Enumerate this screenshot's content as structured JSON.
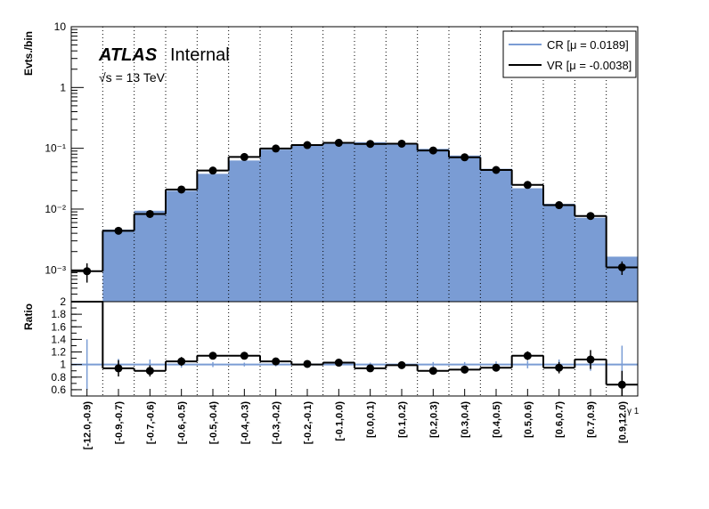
{
  "chart_data": {
    "type": "histogram-ratio",
    "atlas_label": "ATLAS",
    "atlas_suffix": "Internal",
    "energy_label": "√s = 13 TeV",
    "ylabel_top": "Evts./bin",
    "ylabel_bottom": "Ratio",
    "xlabel": "γ 1",
    "top_yscale": "log",
    "top_ylim": [
      0.0003,
      10
    ],
    "top_ytick_labels": [
      "10⁻³",
      "10⁻²",
      "10⁻¹",
      "1",
      "10"
    ],
    "bottom_ylim": [
      0.5,
      2.0
    ],
    "bottom_ytick_labels": [
      "0.6",
      "0.8",
      "1",
      "1.2",
      "1.4",
      "1.6",
      "1.8",
      "2"
    ],
    "categories": [
      "[-12.0,-0.9)",
      "[-0.9,-0.7)",
      "[-0.7,-0.6)",
      "[-0.6,-0.5)",
      "[-0.5,-0.4)",
      "[-0.4,-0.3)",
      "[-0.3,-0.2)",
      "[-0.2,-0.1)",
      "[-0.1,0.0)",
      "[0.0,0.1)",
      "[0.1,0.2)",
      "[0.2,0.3)",
      "[0.3,0.4)",
      "[0.4,0.5)",
      "[0.5,0.6)",
      "[0.6,0.7)",
      "[0.7,0.9)",
      "[0.9,12.0)"
    ],
    "series": [
      {
        "name": "CR [μ = 0.0189]",
        "style": "filled",
        "color": "#7a9cd4",
        "values": [
          0.0003,
          0.0046,
          0.0094,
          0.02,
          0.038,
          0.063,
          0.095,
          0.113,
          0.12,
          0.126,
          0.12,
          0.098,
          0.076,
          0.046,
          0.022,
          0.0122,
          0.0072,
          0.00165
        ]
      },
      {
        "name": "VR [μ = -0.0038]",
        "style": "line-with-points",
        "color": "#000000",
        "values": [
          0.00095,
          0.0044,
          0.0083,
          0.021,
          0.043,
          0.072,
          0.099,
          0.113,
          0.123,
          0.118,
          0.119,
          0.092,
          0.071,
          0.044,
          0.025,
          0.0116,
          0.0077,
          0.0011
        ],
        "errors_rel": [
          0.35,
          0.07,
          0.07,
          0.04,
          0.03,
          0.025,
          0.02,
          0.02,
          0.02,
          0.02,
          0.02,
          0.02,
          0.025,
          0.03,
          0.04,
          0.06,
          0.08,
          0.25
        ]
      }
    ],
    "ratio": {
      "values": [
        3.2,
        0.94,
        0.9,
        1.05,
        1.14,
        1.14,
        1.05,
        1.0,
        1.03,
        0.94,
        0.99,
        0.9,
        0.92,
        0.95,
        1.14,
        0.95,
        1.08,
        0.68
      ],
      "markers": [
        null,
        0.94,
        0.9,
        1.05,
        1.14,
        1.14,
        1.05,
        1.01,
        1.03,
        0.94,
        0.99,
        0.9,
        0.92,
        0.95,
        1.14,
        0.95,
        1.08,
        0.68
      ],
      "marker_errors": [
        0,
        0.13,
        0.09,
        0.07,
        0.04,
        0.04,
        0.03,
        0.03,
        0.03,
        0.03,
        0.03,
        0.04,
        0.04,
        0.05,
        0.07,
        0.09,
        0.15,
        0.22
      ],
      "reference_errors": [
        0.4,
        0.09,
        0.08,
        0.05,
        0.04,
        0.03,
        0.03,
        0.03,
        0.03,
        0.03,
        0.03,
        0.04,
        0.04,
        0.05,
        0.06,
        0.08,
        0.1,
        0.3
      ]
    },
    "legend_position": "top-right",
    "grid": "vertical-dotted"
  }
}
